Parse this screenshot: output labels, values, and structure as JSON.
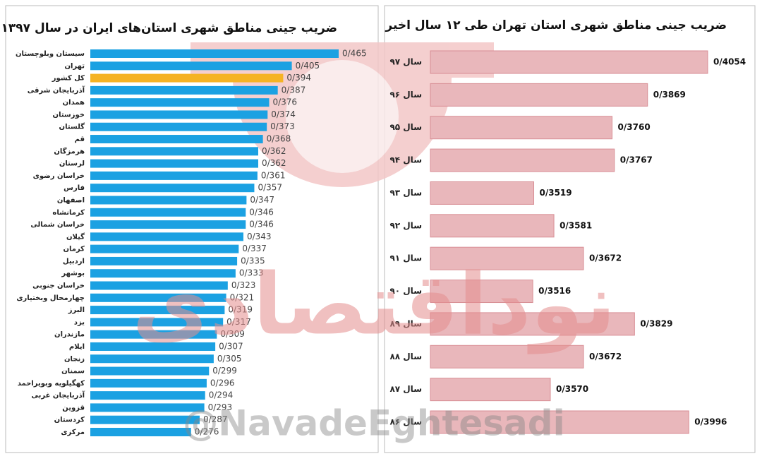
{
  "chart_data": [
    {
      "type": "bar",
      "orientation": "horizontal",
      "title": "ضریب جینی مناطق شهری استان‌های ایران در سال ۱۳۹۷",
      "categories": [
        "سیستان وبلوچستان",
        "تهران",
        "کل کشور",
        "آذربایجان شرقی",
        "همدان",
        "خوزستان",
        "گلستان",
        "قم",
        "هرمزگان",
        "لرستان",
        "خراسان رضوی",
        "فارس",
        "اصفهان",
        "کرمانشاه",
        "خراسان شمالی",
        "گیلان",
        "کرمان",
        "اردبیل",
        "بوشهر",
        "خراسان جنوبی",
        "چهارمحال وبختیاری",
        "البرز",
        "یزد",
        "مازندران",
        "ایلام",
        "زنجان",
        "سمنان",
        "کهگیلویه وبویراحمد",
        "آذربایجان غربی",
        "قزوین",
        "کردستان",
        "مرکزی"
      ],
      "values": [
        0.465,
        0.405,
        0.394,
        0.387,
        0.376,
        0.374,
        0.373,
        0.368,
        0.362,
        0.362,
        0.361,
        0.357,
        0.347,
        0.346,
        0.346,
        0.343,
        0.337,
        0.335,
        0.333,
        0.323,
        0.321,
        0.319,
        0.317,
        0.309,
        0.307,
        0.305,
        0.299,
        0.296,
        0.294,
        0.293,
        0.287,
        0.276
      ],
      "value_labels": [
        "0/465",
        "0/405",
        "0/394",
        "0/387",
        "0/376",
        "0/374",
        "0/373",
        "0/368",
        "0/362",
        "0/362",
        "0/361",
        "0/357",
        "0/347",
        "0/346",
        "0/346",
        "0/343",
        "0/337",
        "0/335",
        "0/333",
        "0/323",
        "0/321",
        "0/319",
        "0/317",
        "0/309",
        "0/307",
        "0/305",
        "0/299",
        "0/296",
        "0/294",
        "0/293",
        "0/287",
        "0/276"
      ],
      "colors": [
        "#1ba1e2",
        "#1ba1e2",
        "#f5b324",
        "#1ba1e2",
        "#1ba1e2",
        "#1ba1e2",
        "#1ba1e2",
        "#1ba1e2",
        "#1ba1e2",
        "#1ba1e2",
        "#1ba1e2",
        "#1ba1e2",
        "#1ba1e2",
        "#1ba1e2",
        "#1ba1e2",
        "#1ba1e2",
        "#1ba1e2",
        "#1ba1e2",
        "#1ba1e2",
        "#1ba1e2",
        "#1ba1e2",
        "#1ba1e2",
        "#1ba1e2",
        "#1ba1e2",
        "#1ba1e2",
        "#1ba1e2",
        "#1ba1e2",
        "#1ba1e2",
        "#1ba1e2",
        "#1ba1e2",
        "#1ba1e2",
        "#1ba1e2"
      ],
      "xlim": [
        0.147,
        0.465
      ]
    },
    {
      "type": "bar",
      "orientation": "horizontal",
      "title": "ضریب جینی مناطق شهری استان تهران طی ۱۲ سال اخیر",
      "categories": [
        "سال ۹۷",
        "سال ۹۶",
        "سال ۹۵",
        "سال ۹۴",
        "سال ۹۳",
        "سال ۹۲",
        "سال ۹۱",
        "سال ۹۰",
        "سال ۸۹",
        "سال ۸۸",
        "سال ۸۷",
        "سال ۸۶"
      ],
      "values": [
        0.4054,
        0.3869,
        0.376,
        0.3767,
        0.3519,
        0.3581,
        0.3672,
        0.3516,
        0.3829,
        0.3672,
        0.357,
        0.3996
      ],
      "value_labels": [
        "0/4054",
        "0/3869",
        "0/3760",
        "0/3767",
        "0/3519",
        "0/3581",
        "0/3672",
        "0/3516",
        "0/3829",
        "0/3672",
        "0/3570",
        "0/3996"
      ],
      "color": "#e9b7bb",
      "edge_color": "#d88e95",
      "xlim": [
        0.3201,
        0.4054
      ]
    }
  ],
  "logo_text": "نوداقتصادی",
  "watermark": "@NavadeEghtesadi"
}
